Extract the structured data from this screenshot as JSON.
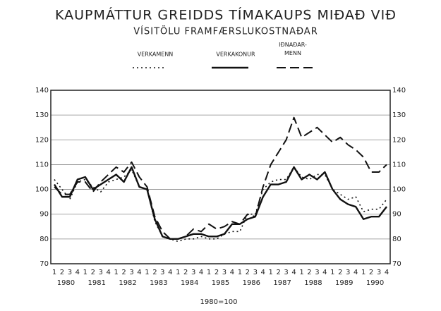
{
  "chart_data": {
    "type": "line",
    "title": "KAUPMÁTTUR GREIDDS TÍMAKAUPS MIÐAÐ VIÐ",
    "subtitle": "VÍSITÖLU FRAMFÆRSLUKOSTNAÐAR",
    "note": "1980=100",
    "categories": [
      "1",
      "2",
      "3",
      "4",
      "1",
      "2",
      "3",
      "4",
      "1",
      "2",
      "3",
      "4",
      "1",
      "2",
      "3",
      "4",
      "1",
      "2",
      "3",
      "4",
      "1",
      "2",
      "3",
      "4",
      "1",
      "2",
      "3",
      "4",
      "1",
      "2",
      "3",
      "4",
      "1",
      "2",
      "3",
      "4",
      "1",
      "2",
      "3",
      "4",
      "1",
      "2",
      "3",
      "4"
    ],
    "years": [
      "1980",
      "1981",
      "1982",
      "1983",
      "1984",
      "1985",
      "1986",
      "1987",
      "1988",
      "1989",
      "1990"
    ],
    "series": [
      {
        "name": "VERKAMENN",
        "color": "#111",
        "dash": "dotted",
        "values": [
          104,
          100,
          96,
          103,
          104,
          101,
          99,
          103,
          104,
          105,
          108,
          101,
          100,
          87,
          81,
          80,
          79,
          80,
          80,
          81,
          80,
          80,
          82,
          83,
          83,
          90,
          90,
          100,
          103,
          104,
          104,
          109,
          105,
          104,
          106,
          106,
          100,
          98,
          96,
          97,
          91,
          92,
          92,
          96
        ]
      },
      {
        "name": "VERKAKONUR",
        "color": "#111",
        "dash": "solid",
        "values": [
          102,
          97,
          97,
          104,
          105,
          100,
          102,
          104,
          106,
          103,
          109,
          101,
          100,
          88,
          81,
          80,
          80,
          81,
          82,
          82,
          81,
          81,
          82,
          86,
          86,
          88,
          89,
          97,
          102,
          102,
          103,
          109,
          104,
          106,
          104,
          107,
          100,
          96,
          94,
          93,
          88,
          89,
          89,
          93
        ]
      },
      {
        "name": "IÐNAÐAR-MENN",
        "color": "#111",
        "dash": "dashed",
        "values": [
          101,
          98,
          98,
          103,
          103,
          99,
          103,
          106,
          109,
          107,
          111,
          105,
          101,
          89,
          83,
          80,
          80,
          81,
          84,
          83,
          86,
          84,
          85,
          87,
          86,
          90,
          89,
          101,
          110,
          115,
          120,
          129,
          121,
          123,
          125,
          122,
          119,
          121,
          118,
          116,
          113,
          107,
          107,
          110
        ]
      }
    ],
    "ylim": [
      70,
      140
    ],
    "yticks": [
      70,
      80,
      90,
      100,
      110,
      120,
      130,
      140
    ],
    "grid": true
  }
}
